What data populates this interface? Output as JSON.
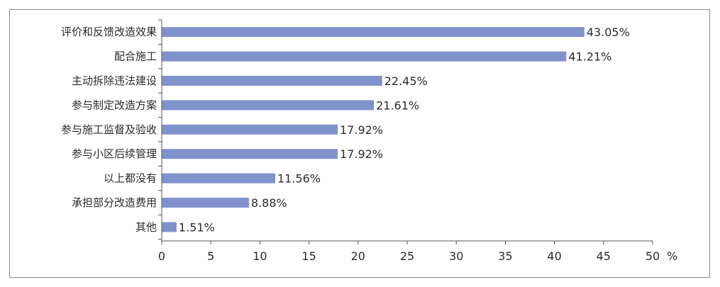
{
  "chart_data": {
    "type": "bar",
    "orientation": "horizontal",
    "categories": [
      "评价和反馈改造效果",
      "配合施工",
      "主动拆除违法建设",
      "参与制定改造方案",
      "参与施工监督及验收",
      "参与小区后续管理",
      "以上都没有",
      "承担部分改造费用",
      "其他"
    ],
    "values": [
      43.05,
      41.21,
      22.45,
      21.61,
      17.92,
      17.92,
      11.56,
      8.88,
      1.51
    ],
    "value_labels": [
      "43.05%",
      "41.21%",
      "22.45%",
      "21.61%",
      "17.92%",
      "17.92%",
      "11.56%",
      "8.88%",
      "1.51%"
    ],
    "xlim": [
      0,
      50
    ],
    "x_ticks": [
      0,
      5,
      10,
      15,
      20,
      25,
      30,
      35,
      40,
      45,
      50
    ],
    "x_tick_labels": [
      "0",
      "5",
      "10",
      "15",
      "20",
      "25",
      "30",
      "35",
      "40",
      "45",
      "50"
    ],
    "x_unit": "%",
    "grid": false,
    "bar_color": "#7f92cc"
  }
}
